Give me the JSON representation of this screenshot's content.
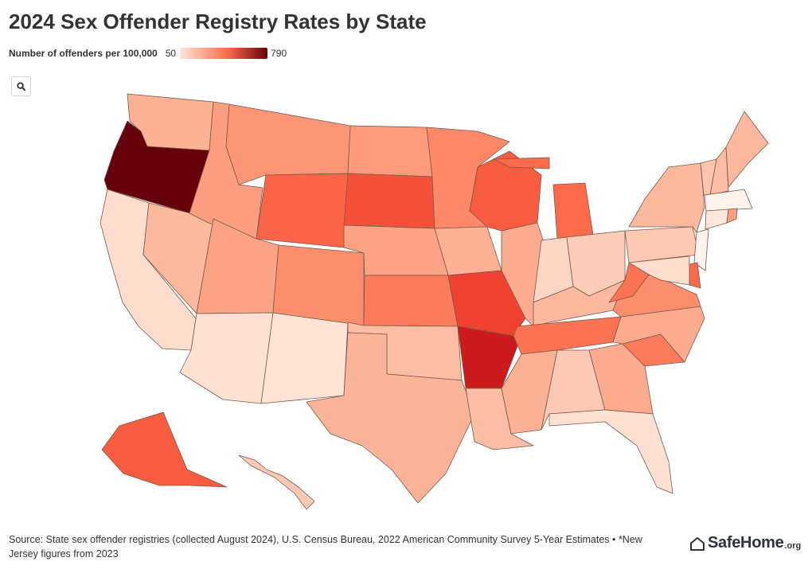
{
  "title": "2024 Sex Offender Registry Rates by State",
  "legend": {
    "label": "Number of offenders per 100,000",
    "min": "50",
    "max": "790",
    "min_color": "#fee5d9",
    "mid_color": "#fb6a4a",
    "max_color": "#67000d"
  },
  "toolbar": {
    "search_icon": "search-icon"
  },
  "footer": {
    "source": "Source: State sex offender registries (collected August 2024), U.S. Census Bureau, 2022 American Community Survey 5-Year Estimates • *New Jersey figures from 2023"
  },
  "brand": {
    "name": "SafeHome",
    "tld": ".org",
    "icon": "house-icon"
  },
  "map": {
    "type": "choropleth",
    "region": "United States",
    "scale": {
      "min": 50,
      "max": 790
    },
    "states": [
      {
        "id": "WA",
        "value": 260
      },
      {
        "id": "OR",
        "value": 790
      },
      {
        "id": "CA",
        "value": 150
      },
      {
        "id": "NV",
        "value": 240
      },
      {
        "id": "ID",
        "value": 300
      },
      {
        "id": "MT",
        "value": 320
      },
      {
        "id": "WY",
        "value": 430
      },
      {
        "id": "UT",
        "value": 290
      },
      {
        "id": "AZ",
        "value": 140
      },
      {
        "id": "NM",
        "value": 130
      },
      {
        "id": "CO",
        "value": 340
      },
      {
        "id": "ND",
        "value": 310
      },
      {
        "id": "SD",
        "value": 470
      },
      {
        "id": "NE",
        "value": 290
      },
      {
        "id": "KS",
        "value": 380
      },
      {
        "id": "OK",
        "value": 230
      },
      {
        "id": "TX",
        "value": 250
      },
      {
        "id": "MN",
        "value": 350
      },
      {
        "id": "IA",
        "value": 260
      },
      {
        "id": "MO",
        "value": 500
      },
      {
        "id": "AR",
        "value": 600
      },
      {
        "id": "LA",
        "value": 230
      },
      {
        "id": "WI",
        "value": 450
      },
      {
        "id": "IL",
        "value": 270
      },
      {
        "id": "MI",
        "value": 420
      },
      {
        "id": "IN",
        "value": 170
      },
      {
        "id": "OH",
        "value": 190
      },
      {
        "id": "KY",
        "value": 240
      },
      {
        "id": "TN",
        "value": 400
      },
      {
        "id": "MS",
        "value": 260
      },
      {
        "id": "AL",
        "value": 200
      },
      {
        "id": "GA",
        "value": 270
      },
      {
        "id": "FL",
        "value": 140
      },
      {
        "id": "SC",
        "value": 380
      },
      {
        "id": "NC",
        "value": 270
      },
      {
        "id": "VA",
        "value": 340
      },
      {
        "id": "WV",
        "value": 400
      },
      {
        "id": "PA",
        "value": 200
      },
      {
        "id": "NY",
        "value": 240
      },
      {
        "id": "VT",
        "value": 210
      },
      {
        "id": "NH",
        "value": 230
      },
      {
        "id": "ME",
        "value": 240
      },
      {
        "id": "MA",
        "value": 60
      },
      {
        "id": "CT",
        "value": 110
      },
      {
        "id": "RI",
        "value": 300
      },
      {
        "id": "NJ",
        "value": 60
      },
      {
        "id": "DE",
        "value": 420
      },
      {
        "id": "MD",
        "value": 150
      },
      {
        "id": "AK",
        "value": 450
      },
      {
        "id": "HI",
        "value": 200
      }
    ]
  }
}
